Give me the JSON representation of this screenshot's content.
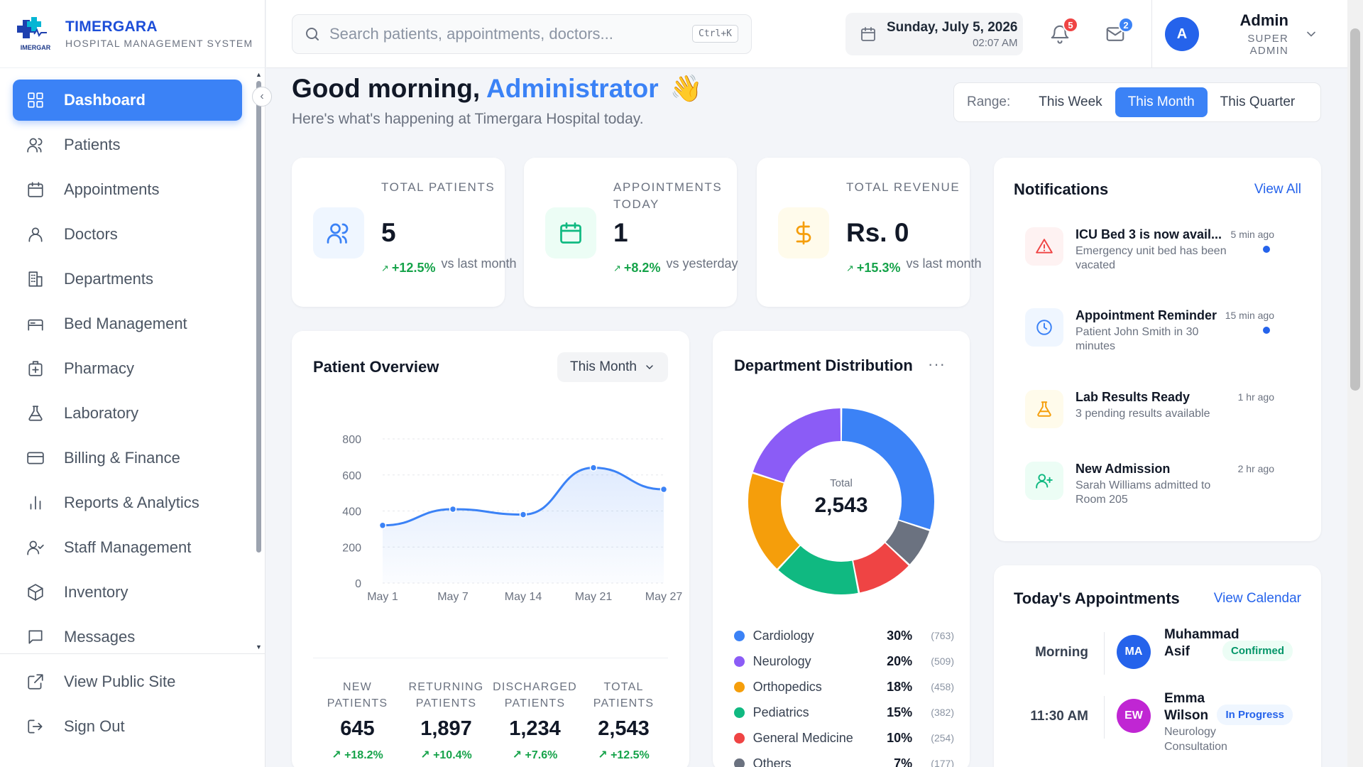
{
  "brand": {
    "name": "TIMERGARA",
    "subtitle": "HOSPITAL MANAGEMENT SYSTEM",
    "logo_text": "IMERGAR"
  },
  "sidebar": {
    "items": [
      {
        "label": "Dashboard",
        "icon": "grid-icon",
        "active": true
      },
      {
        "label": "Patients",
        "icon": "users-icon"
      },
      {
        "label": "Appointments",
        "icon": "calendar-icon"
      },
      {
        "label": "Doctors",
        "icon": "user-icon"
      },
      {
        "label": "Departments",
        "icon": "building-icon"
      },
      {
        "label": "Bed Management",
        "icon": "bed-icon"
      },
      {
        "label": "Pharmacy",
        "icon": "pharmacy-icon"
      },
      {
        "label": "Laboratory",
        "icon": "flask-icon"
      },
      {
        "label": "Billing & Finance",
        "icon": "credit-card-icon"
      },
      {
        "label": "Reports & Analytics",
        "icon": "bar-chart-icon"
      },
      {
        "label": "Staff Management",
        "icon": "user-check-icon"
      },
      {
        "label": "Inventory",
        "icon": "box-icon"
      },
      {
        "label": "Messages",
        "icon": "message-icon"
      }
    ],
    "bottom": [
      {
        "label": "View Public Site",
        "icon": "external-link-icon"
      },
      {
        "label": "Sign Out",
        "icon": "logout-icon"
      }
    ]
  },
  "header": {
    "search_placeholder": "Search patients, appointments, doctors...",
    "search_shortcut": "Ctrl+K",
    "date": "Sunday, July 5, 2026",
    "time": "02:07 AM",
    "notifications_count": "5",
    "messages_count": "2",
    "user": {
      "initial": "A",
      "name": "Admin",
      "role": "SUPER ADMIN"
    }
  },
  "greeting": {
    "prefix": "Good morning, ",
    "name": "Administrator",
    "emoji": "👋",
    "subtitle": "Here's what's happening at Timergara Hospital today."
  },
  "range": {
    "label": "Range:",
    "options": [
      "This Week",
      "This Month",
      "This Quarter"
    ],
    "selected": "This Month"
  },
  "stats": [
    {
      "label": "TOTAL PATIENTS",
      "value": "5",
      "change": "+12.5%",
      "vs": "vs last month",
      "icon": "users-icon",
      "color": "#3b82f6",
      "bg": "#eff6ff"
    },
    {
      "label": "APPOINTMENTS TODAY",
      "value": "1",
      "change": "+8.2%",
      "vs": "vs yesterday",
      "icon": "calendar-icon",
      "color": "#10b981",
      "bg": "#ecfdf5"
    },
    {
      "label": "TOTAL REVENUE",
      "value": "Rs. 0",
      "change": "+15.3%",
      "vs": "vs last month",
      "icon": "dollar-icon",
      "color": "#f59e0b",
      "bg": "#fffbeb"
    }
  ],
  "patient_overview": {
    "title": "Patient Overview",
    "period": "This Month",
    "summary": [
      {
        "label": "NEW PATIENTS",
        "value": "645",
        "change": "+18.2%"
      },
      {
        "label": "RETURNING PATIENTS",
        "value": "1,897",
        "change": "+10.4%"
      },
      {
        "label": "DISCHARGED PATIENTS",
        "value": "1,234",
        "change": "+7.6%"
      },
      {
        "label": "TOTAL PATIENTS",
        "value": "2,543",
        "change": "+12.5%"
      }
    ]
  },
  "department_distribution": {
    "title": "Department Distribution",
    "total_label": "Total",
    "total": "2,543",
    "departments": [
      {
        "name": "Cardiology",
        "pct": "30%",
        "count": "(763)",
        "color": "#3b82f6"
      },
      {
        "name": "Neurology",
        "pct": "20%",
        "count": "(509)",
        "color": "#8b5cf6"
      },
      {
        "name": "Orthopedics",
        "pct": "18%",
        "count": "(458)",
        "color": "#f59e0b"
      },
      {
        "name": "Pediatrics",
        "pct": "15%",
        "count": "(382)",
        "color": "#10b981"
      },
      {
        "name": "General Medicine",
        "pct": "10%",
        "count": "(254)",
        "color": "#ef4444"
      },
      {
        "name": "Others",
        "pct": "7%",
        "count": "(177)",
        "color": "#6b7280"
      }
    ]
  },
  "chart_data": [
    {
      "type": "area",
      "title": "Patient Overview",
      "x": [
        "May 1",
        "May 7",
        "May 14",
        "May 21",
        "May 27"
      ],
      "series": [
        {
          "values": [
            320,
            410,
            380,
            640,
            520
          ]
        }
      ],
      "ylim": [
        0,
        800
      ],
      "yticks": [
        0,
        200,
        400,
        600,
        800
      ],
      "grid": true
    },
    {
      "type": "pie",
      "title": "Department Distribution",
      "categories": [
        "Cardiology",
        "Neurology",
        "Orthopedics",
        "Pediatrics",
        "General Medicine",
        "Others"
      ],
      "values": [
        763,
        509,
        458,
        382,
        254,
        177
      ],
      "order_clockwise_from_top": [
        "Cardiology",
        "Others",
        "General Medicine",
        "Pediatrics",
        "Orthopedics",
        "Neurology"
      ]
    }
  ],
  "notifications": {
    "title": "Notifications",
    "view_all": "View All",
    "items": [
      {
        "title": "ICU Bed 3 is now avail...",
        "desc": "Emergency unit bed has been vacated",
        "time": "5 min ago",
        "unread": true,
        "icon": "alert-triangle-icon",
        "color": "#ef4444",
        "bg": "#fef2f2"
      },
      {
        "title": "Appointment Reminder",
        "desc": "Patient John Smith in 30 minutes",
        "time": "15 min ago",
        "unread": true,
        "icon": "clock-icon",
        "color": "#3b82f6",
        "bg": "#eff6ff"
      },
      {
        "title": "Lab Results Ready",
        "desc": "3 pending results available",
        "time": "1 hr ago",
        "unread": false,
        "icon": "flask-icon",
        "color": "#f59e0b",
        "bg": "#fffbeb"
      },
      {
        "title": "New Admission",
        "desc": "Sarah Williams admitted to Room 205",
        "time": "2 hr ago",
        "unread": false,
        "icon": "user-plus-icon",
        "color": "#10b981",
        "bg": "#ecfdf5"
      }
    ]
  },
  "appointments": {
    "title": "Today's Appointments",
    "view_calendar": "View Calendar",
    "items": [
      {
        "slot": "Morning",
        "initials": "MA",
        "name": "Muhammad Asif",
        "sub": "",
        "status": "Confirmed",
        "avatar_color": "#2563eb",
        "status_color": "#059669",
        "status_bg": "#ecfdf5"
      },
      {
        "slot": "11:30 AM",
        "initials": "EW",
        "name": "Emma Wilson",
        "sub": "Neurology Consultation",
        "status": "In Progress",
        "avatar_color": "#c026d3",
        "status_color": "#2563eb",
        "status_bg": "#eff6ff"
      }
    ]
  }
}
